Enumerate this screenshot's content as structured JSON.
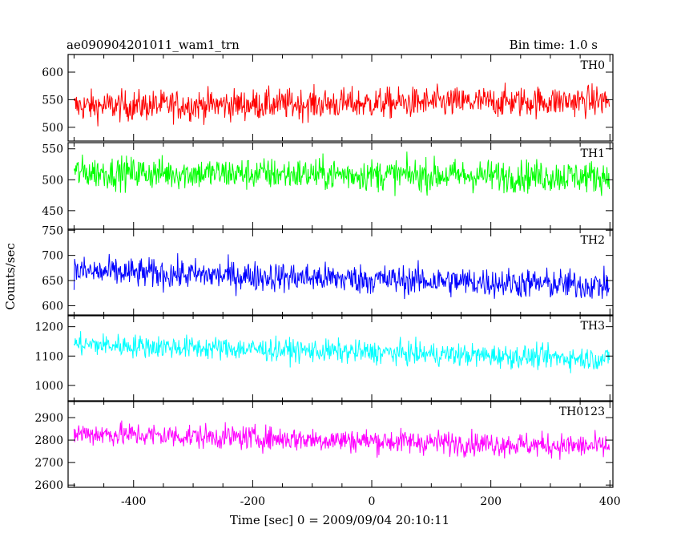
{
  "header": {
    "title": "ae090904201011_wam1_trn",
    "bin_time": "Bin time: 1.0 s"
  },
  "chart_data": {
    "type": "line",
    "xlabel": "Time [sec] 0 = 2009/09/04 20:10:11",
    "ylabel": "Counts/sec",
    "xlim": [
      -510,
      405
    ],
    "x_range": [
      -500,
      399
    ],
    "x_ticks": [
      "-400",
      "-200",
      "0",
      "200",
      "400"
    ],
    "x_tick_values": [
      -400,
      -200,
      0,
      200,
      400
    ],
    "series": [
      {
        "name": "TH0",
        "color": "#ff0000",
        "ylim": [
          475,
          632
        ],
        "y_ticks": [
          "500",
          "550",
          "600"
        ],
        "y_tick_values": [
          500,
          550,
          600
        ],
        "mean_start": 538,
        "mean_end": 548,
        "amplitude": 30
      },
      {
        "name": "TH1",
        "color": "#00ff00",
        "ylim": [
          420,
          560
        ],
        "y_ticks": [
          "450",
          "500",
          "550"
        ],
        "y_tick_values": [
          450,
          500,
          550
        ],
        "mean_start": 512,
        "mean_end": 505,
        "amplitude": 28
      },
      {
        "name": "TH2",
        "color": "#0000ff",
        "ylim": [
          580,
          752
        ],
        "y_ticks": [
          "600",
          "650",
          "700",
          "750"
        ],
        "y_tick_values": [
          600,
          650,
          700,
          750
        ],
        "mean_start": 668,
        "mean_end": 640,
        "amplitude": 32
      },
      {
        "name": "TH3",
        "color": "#00ffff",
        "ylim": [
          945,
          1240
        ],
        "y_ticks": [
          "1000",
          "1100",
          "1200"
        ],
        "y_tick_values": [
          1000,
          1100,
          1200
        ],
        "mean_start": 1140,
        "mean_end": 1090,
        "amplitude": 42
      },
      {
        "name": "TH0123",
        "color": "#ff00ff",
        "ylim": [
          2590,
          2975
        ],
        "y_ticks": [
          "2600",
          "2700",
          "2800",
          "2900"
        ],
        "y_tick_values": [
          2600,
          2700,
          2800,
          2900
        ],
        "mean_start": 2830,
        "mean_end": 2770,
        "amplitude": 58
      }
    ]
  }
}
